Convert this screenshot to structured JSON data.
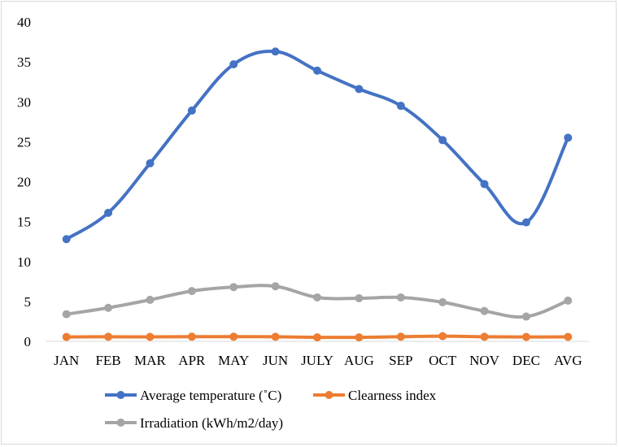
{
  "chart_data": {
    "type": "line",
    "categories": [
      "JAN",
      "FEB",
      "MAR",
      "APR",
      "MAY",
      "JUN",
      "JULY",
      "AUG",
      "SEP",
      "OCT",
      "NOV",
      "DEC",
      "AVG"
    ],
    "ylim": [
      0,
      40
    ],
    "yticks": [
      "0",
      "5",
      "10",
      "15",
      "20",
      "25",
      "30",
      "35",
      "40"
    ],
    "grid": false,
    "legend_position": "bottom",
    "series": [
      {
        "name": "Average temperature (˚C)",
        "color": "#4472c4",
        "values": [
          12.8,
          16.1,
          22.3,
          28.9,
          34.7,
          36.3,
          33.9,
          31.6,
          29.5,
          25.2,
          19.7,
          14.9,
          25.5
        ]
      },
      {
        "name": "Clearness index",
        "color": "#ed7d31",
        "values": [
          0.55,
          0.57,
          0.56,
          0.58,
          0.58,
          0.57,
          0.5,
          0.5,
          0.58,
          0.65,
          0.57,
          0.55,
          0.56
        ]
      },
      {
        "name": "Irradiation (kWh/m2/day)",
        "color": "#a5a5a5",
        "values": [
          3.4,
          4.2,
          5.2,
          6.3,
          6.8,
          6.9,
          5.5,
          5.4,
          5.5,
          4.9,
          3.8,
          3.1,
          5.1
        ]
      }
    ]
  }
}
